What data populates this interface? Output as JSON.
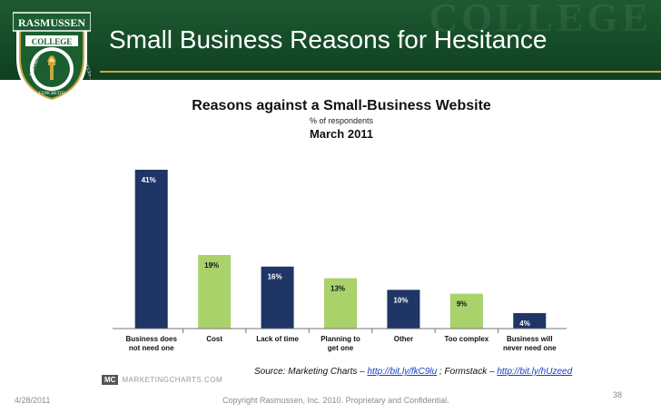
{
  "slide": {
    "title": "Small Business Reasons for Hesitance",
    "footer_date": "4/28/2011",
    "footer_copyright": "Copyright Rasmussen, Inc. 2010. Proprietary and Confidential.",
    "page_number": "38"
  },
  "logo": {
    "top_text": "RASMUSSEN",
    "band_text": "COLLEGE",
    "left_motto": "DOCTRINA",
    "bottom_motto": "CONCRETIO",
    "right_motto": "SUCCESSIO",
    "colors": {
      "shield": "#1b5e30",
      "gold": "#c9a640",
      "white": "#ffffff"
    }
  },
  "header": {
    "watermark": "COLLEGE"
  },
  "source": {
    "prefix": "Source: Marketing Charts – ",
    "link1": "http://bit.ly/fkC9lu",
    "mid": " ; Formstack – ",
    "link2": "http://bit.ly/hUzeed"
  },
  "mc_logo": {
    "badge": "MC",
    "text": "MARKETINGCHARTS.COM"
  },
  "chart_data": {
    "type": "bar",
    "title": "Reasons against a Small-Business Website",
    "subtitle": "% of respondents",
    "date": "March 2011",
    "categories": [
      [
        "Business does",
        "not need one"
      ],
      [
        "Cost"
      ],
      [
        "Lack of time"
      ],
      [
        "Planning to",
        "get one"
      ],
      [
        "Other"
      ],
      [
        "Too complex"
      ],
      [
        "Business will",
        "never need one"
      ]
    ],
    "values": [
      41,
      19,
      16,
      13,
      10,
      9,
      4
    ],
    "value_labels": [
      "41%",
      "19%",
      "16%",
      "13%",
      "10%",
      "9%",
      "4%"
    ],
    "bar_colors": [
      "#1f3566",
      "#a9d26b",
      "#1f3566",
      "#a9d26b",
      "#1f3566",
      "#a9d26b",
      "#1f3566"
    ],
    "ylim": [
      0,
      41
    ],
    "grid": false
  }
}
